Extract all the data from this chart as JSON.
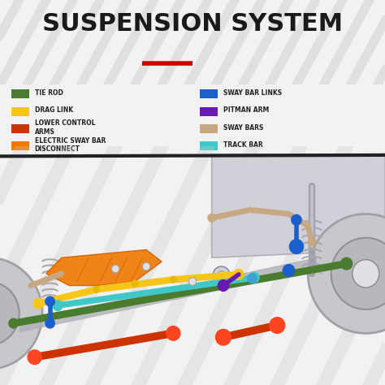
{
  "title": "SUSPENSION SYSTEM",
  "title_color": "#1a1a1a",
  "title_fontsize": 22,
  "red_line_color": "#cc0000",
  "legend_items_left": [
    {
      "label": "TIE ROD",
      "color": "#4a7c2f"
    },
    {
      "label": "DRAG LINK",
      "color": "#f5c518"
    },
    {
      "label": "LOWER CONTROL\nARMS",
      "color": "#cc3300"
    },
    {
      "label": "ELECTRIC SWAY BAR\nDISCONNECT",
      "color": "#f07800"
    }
  ],
  "legend_items_right": [
    {
      "label": "SWAY BAR LINKS",
      "color": "#1a5fcc"
    },
    {
      "label": "PITMAN ARM",
      "color": "#6a1ab0"
    },
    {
      "label": "SWAY BARS",
      "color": "#c8a882"
    },
    {
      "label": "TRACK BAR",
      "color": "#40c8c8"
    }
  ],
  "diagram_colors": {
    "tie_rod": "#4a7c2f",
    "drag_link": "#f5c518",
    "lower_control": "#cc3300",
    "sway_bar_disconnect": "#f07800",
    "sway_bar_links": "#1a5fcc",
    "pitman_arm": "#6a1ab0",
    "sway_bars": "#c8a882",
    "track_bar": "#40c8c8"
  },
  "bolt_circles": [
    [
      3.0,
      2.92,
      0.1
    ],
    [
      3.8,
      2.98,
      0.1
    ],
    [
      5.0,
      2.6,
      0.1
    ]
  ]
}
